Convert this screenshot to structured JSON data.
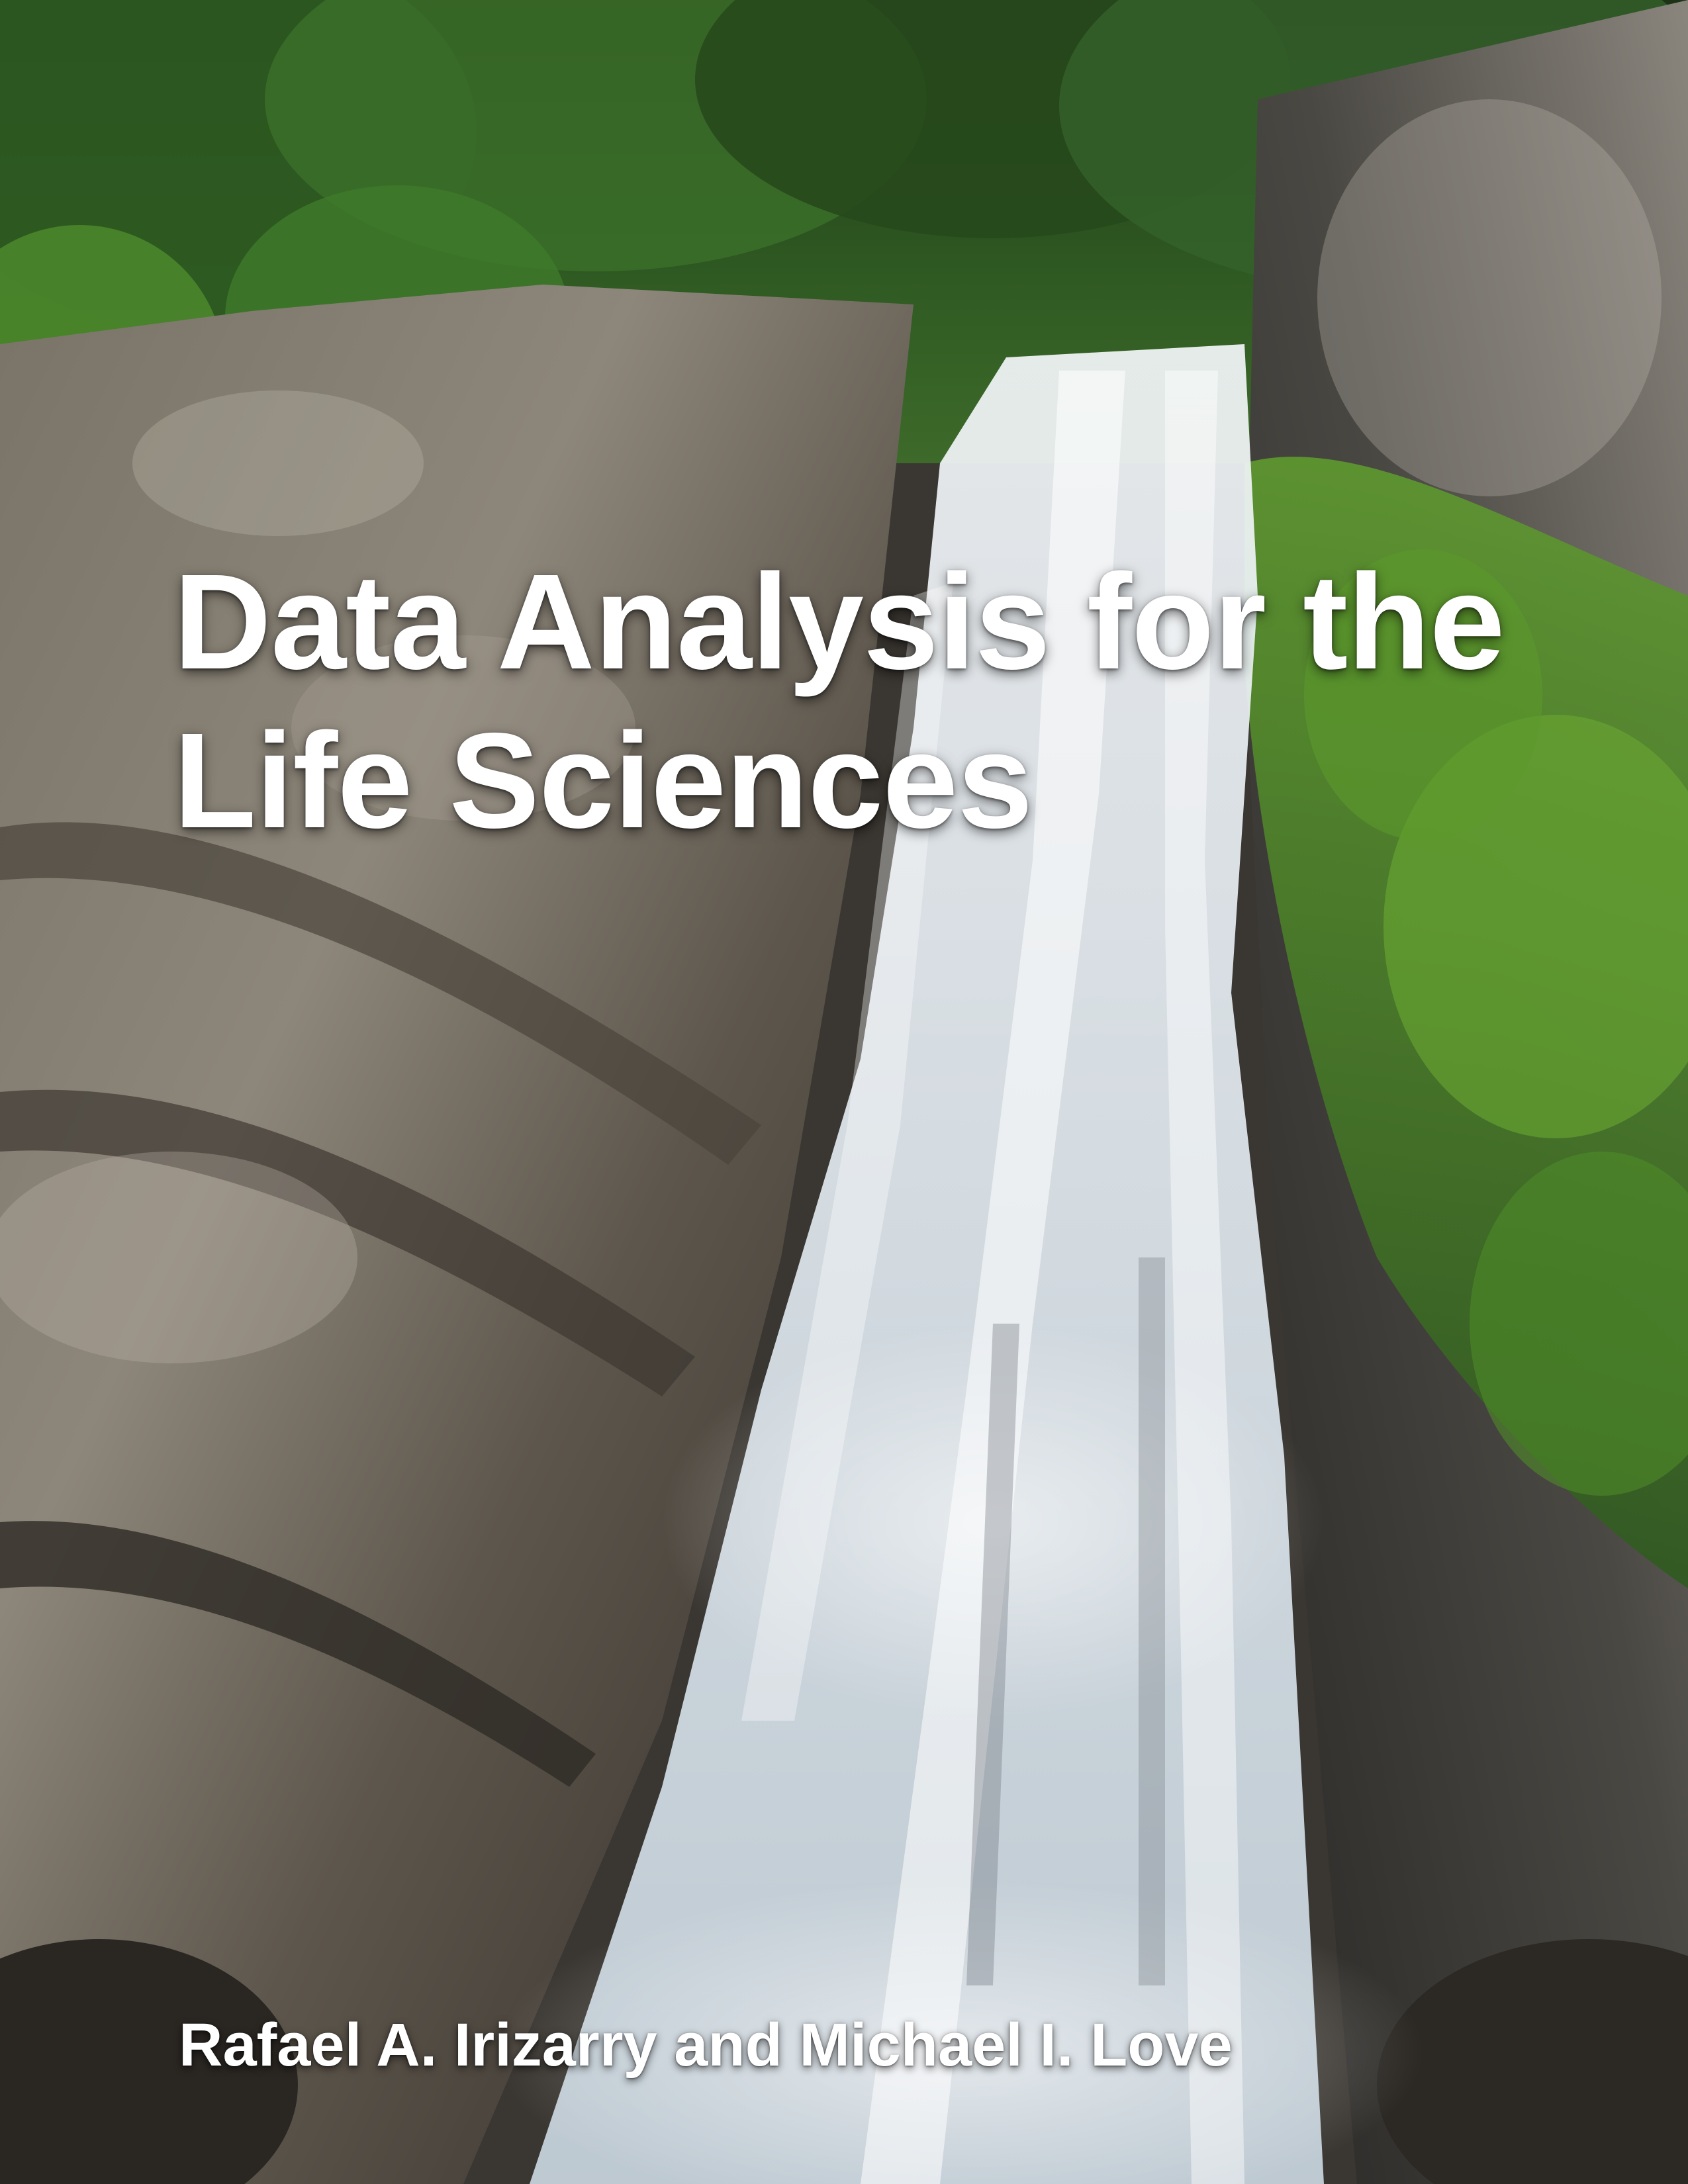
{
  "cover": {
    "title_line_1": "Data Analysis for the",
    "title_line_2": "Life Sciences",
    "authors": "Rafael A. Irizarry and Michael I. Love"
  },
  "colors": {
    "text": "#ffffff",
    "foliage": "#3f7a2a",
    "rock": "#5a5248",
    "water": "#eef3f7"
  }
}
